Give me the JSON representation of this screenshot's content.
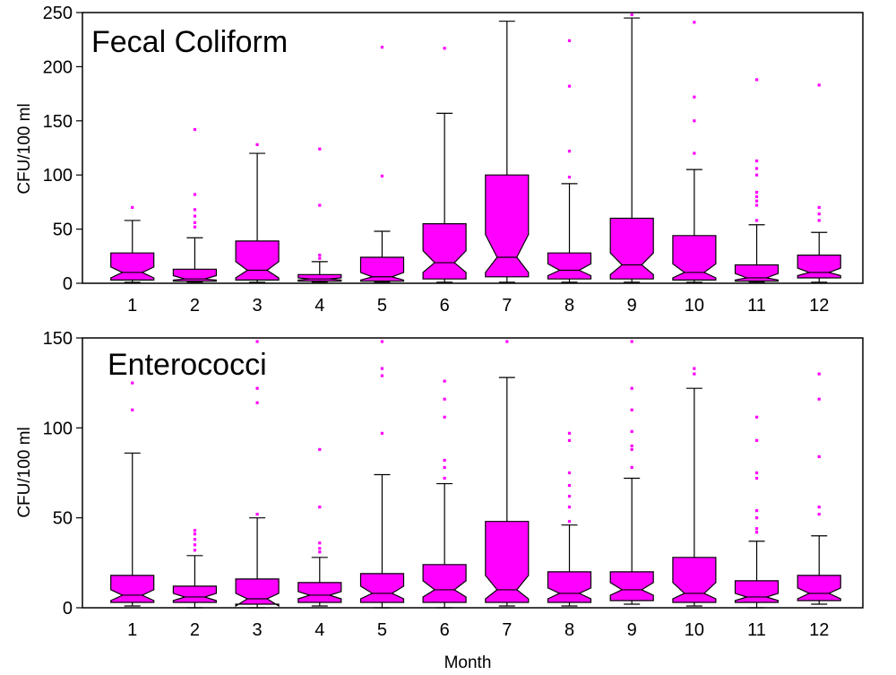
{
  "chart_data": [
    {
      "type": "boxplot",
      "title": "Fecal Coliform",
      "ylabel": "CFU/100 ml",
      "xlabel": "",
      "ylim": [
        0,
        250
      ],
      "yticks": [
        0,
        50,
        100,
        150,
        200,
        250
      ],
      "categories": [
        "1",
        "2",
        "3",
        "4",
        "5",
        "6",
        "7",
        "8",
        "9",
        "10",
        "11",
        "12"
      ],
      "box_color": "#ff00ff",
      "boxes": [
        {
          "low": 1,
          "q1": 3,
          "median": 10,
          "q3": 28,
          "high": 58,
          "notch_low": 5,
          "notch_high": 15,
          "outliers": [
            70
          ]
        },
        {
          "low": 1,
          "q1": 2,
          "median": 4,
          "q3": 13,
          "high": 42,
          "notch_low": 3,
          "notch_high": 7,
          "outliers": [
            52,
            56,
            62,
            68,
            82,
            142
          ]
        },
        {
          "low": 1,
          "q1": 3,
          "median": 12,
          "q3": 39,
          "high": 120,
          "notch_low": 5,
          "notch_high": 20,
          "outliers": [
            128
          ]
        },
        {
          "low": 1,
          "q1": 2,
          "median": 4,
          "q3": 8,
          "high": 20,
          "notch_low": 3,
          "notch_high": 5,
          "outliers": [
            23,
            26,
            72,
            124
          ]
        },
        {
          "low": 1,
          "q1": 2,
          "median": 6,
          "q3": 24,
          "high": 48,
          "notch_low": 3,
          "notch_high": 10,
          "outliers": [
            99,
            218
          ]
        },
        {
          "low": 1,
          "q1": 4,
          "median": 19,
          "q3": 55,
          "high": 157,
          "notch_low": 10,
          "notch_high": 30,
          "outliers": [
            217
          ]
        },
        {
          "low": 1,
          "q1": 6,
          "median": 24,
          "q3": 100,
          "high": 242,
          "notch_low": 10,
          "notch_high": 45,
          "outliers": []
        },
        {
          "low": 1,
          "q1": 4,
          "median": 12,
          "q3": 28,
          "high": 92,
          "notch_low": 7,
          "notch_high": 18,
          "outliers": [
            98,
            122,
            182,
            224
          ]
        },
        {
          "low": 1,
          "q1": 4,
          "median": 17,
          "q3": 60,
          "high": 245,
          "notch_low": 8,
          "notch_high": 28,
          "outliers": [
            248
          ]
        },
        {
          "low": 1,
          "q1": 3,
          "median": 10,
          "q3": 44,
          "high": 105,
          "notch_low": 5,
          "notch_high": 18,
          "outliers": [
            120,
            150,
            172,
            241
          ]
        },
        {
          "low": 1,
          "q1": 2,
          "median": 5,
          "q3": 17,
          "high": 54,
          "notch_low": 3,
          "notch_high": 9,
          "outliers": [
            58,
            72,
            76,
            80,
            84,
            100,
            106,
            113,
            188
          ]
        },
        {
          "low": 1,
          "q1": 5,
          "median": 10,
          "q3": 26,
          "high": 47,
          "notch_low": 7,
          "notch_high": 14,
          "outliers": [
            58,
            64,
            70,
            183
          ]
        }
      ]
    },
    {
      "type": "boxplot",
      "title": "Enterococci",
      "ylabel": "CFU/100 ml",
      "xlabel": "Month",
      "ylim": [
        0,
        150
      ],
      "yticks": [
        0,
        50,
        100,
        150
      ],
      "categories": [
        "1",
        "2",
        "3",
        "4",
        "5",
        "6",
        "7",
        "8",
        "9",
        "10",
        "11",
        "12"
      ],
      "box_color": "#ff00ff",
      "boxes": [
        {
          "low": 1,
          "q1": 3,
          "median": 7,
          "q3": 18,
          "high": 86,
          "notch_low": 4,
          "notch_high": 10,
          "outliers": [
            110,
            125
          ]
        },
        {
          "low": 0,
          "q1": 3,
          "median": 6,
          "q3": 12,
          "high": 29,
          "notch_low": 4,
          "notch_high": 8,
          "outliers": [
            32,
            35,
            38,
            41,
            43
          ]
        },
        {
          "low": 0,
          "q1": 2,
          "median": 5,
          "q3": 16,
          "high": 50,
          "notch_low": 1,
          "notch_high": 8,
          "outliers": [
            52,
            114,
            122,
            148
          ]
        },
        {
          "low": 1,
          "q1": 3,
          "median": 7,
          "q3": 14,
          "high": 28,
          "notch_low": 5,
          "notch_high": 9,
          "outliers": [
            31,
            33,
            36,
            56,
            88
          ]
        },
        {
          "low": 0,
          "q1": 3,
          "median": 8,
          "q3": 19,
          "high": 74,
          "notch_low": 5,
          "notch_high": 12,
          "outliers": [
            97,
            129,
            133,
            148
          ]
        },
        {
          "low": 0,
          "q1": 3,
          "median": 10,
          "q3": 24,
          "high": 69,
          "notch_low": 6,
          "notch_high": 15,
          "outliers": [
            72,
            78,
            82,
            106,
            116,
            126
          ]
        },
        {
          "low": 1,
          "q1": 3,
          "median": 10,
          "q3": 48,
          "high": 128,
          "notch_low": 5,
          "notch_high": 18,
          "outliers": [
            148
          ]
        },
        {
          "low": 1,
          "q1": 3,
          "median": 8,
          "q3": 20,
          "high": 46,
          "notch_low": 5,
          "notch_high": 11,
          "outliers": [
            48,
            56,
            62,
            68,
            75,
            93,
            97
          ]
        },
        {
          "low": 2,
          "q1": 4,
          "median": 10,
          "q3": 20,
          "high": 72,
          "notch_low": 7,
          "notch_high": 14,
          "outliers": [
            78,
            88,
            90,
            98,
            110,
            122,
            148
          ]
        },
        {
          "low": 1,
          "q1": 3,
          "median": 8,
          "q3": 28,
          "high": 122,
          "notch_low": 5,
          "notch_high": 14,
          "outliers": [
            130,
            133
          ]
        },
        {
          "low": 0,
          "q1": 3,
          "median": 6,
          "q3": 15,
          "high": 37,
          "notch_low": 4,
          "notch_high": 8,
          "outliers": [
            42,
            44,
            50,
            54,
            72,
            75,
            93,
            106
          ]
        },
        {
          "low": 2,
          "q1": 4,
          "median": 8,
          "q3": 18,
          "high": 40,
          "notch_low": 5,
          "notch_high": 11,
          "outliers": [
            52,
            56,
            84,
            116,
            130
          ]
        }
      ]
    }
  ]
}
